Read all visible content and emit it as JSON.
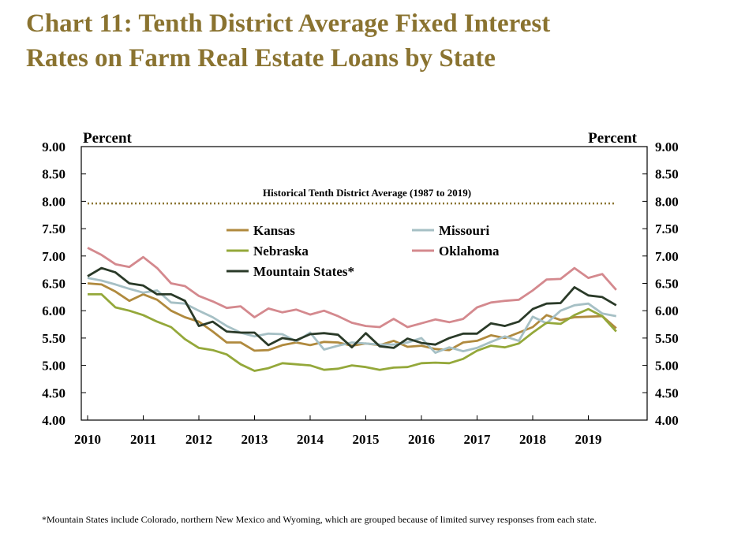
{
  "title": "Chart 11: Tenth District Average Fixed Interest\nRates on Farm Real Estate Loans by State",
  "footnote": "*Mountain States include Colorado, northern New Mexico and Wyoming, which are grouped because of limited survey responses from each state.",
  "chart_data": {
    "type": "line",
    "y_unit_left": "Percent",
    "y_unit_right": "Percent",
    "ylim": [
      4.0,
      9.0
    ],
    "xlim": [
      2010,
      2020
    ],
    "y_ticks": [
      "4.00",
      "4.50",
      "5.00",
      "5.50",
      "6.00",
      "6.50",
      "7.00",
      "7.50",
      "8.00",
      "8.50",
      "9.00"
    ],
    "x_ticks": [
      "2010",
      "2011",
      "2012",
      "2013",
      "2014",
      "2015",
      "2016",
      "2017",
      "2018",
      "2019"
    ],
    "grid": false,
    "legend_position": "upper-center",
    "reference_line": {
      "label": "Historical Tenth District Average (1987 to 2019)",
      "value": 7.96,
      "color": "#8a7330"
    },
    "x": [
      2010.0,
      2010.25,
      2010.5,
      2010.75,
      2011.0,
      2011.25,
      2011.5,
      2011.75,
      2012.0,
      2012.25,
      2012.5,
      2012.75,
      2013.0,
      2013.25,
      2013.5,
      2013.75,
      2014.0,
      2014.25,
      2014.5,
      2014.75,
      2015.0,
      2015.25,
      2015.5,
      2015.75,
      2016.0,
      2016.25,
      2016.5,
      2016.75,
      2017.0,
      2017.25,
      2017.5,
      2017.75,
      2018.0,
      2018.25,
      2018.5,
      2018.75,
      2019.0,
      2019.25,
      2019.5
    ],
    "series": [
      {
        "name": "Kansas",
        "color": "#b08a3e",
        "values": [
          6.5,
          6.48,
          6.35,
          6.18,
          6.3,
          6.2,
          6.0,
          5.88,
          5.8,
          5.62,
          5.42,
          5.42,
          5.27,
          5.28,
          5.37,
          5.42,
          5.37,
          5.43,
          5.42,
          5.36,
          5.4,
          5.37,
          5.45,
          5.34,
          5.36,
          5.3,
          5.28,
          5.42,
          5.45,
          5.55,
          5.5,
          5.6,
          5.7,
          5.92,
          5.83,
          5.88,
          5.89,
          5.9,
          5.68
        ]
      },
      {
        "name": "Missouri",
        "color": "#a6c0c5",
        "values": [
          6.6,
          6.55,
          6.48,
          6.4,
          6.33,
          6.37,
          6.15,
          6.13,
          6.0,
          5.88,
          5.72,
          5.6,
          5.53,
          5.58,
          5.57,
          5.44,
          5.6,
          5.29,
          5.36,
          5.42,
          5.4,
          5.38,
          5.38,
          5.42,
          5.5,
          5.23,
          5.33,
          5.26,
          5.32,
          5.43,
          5.53,
          5.45,
          5.89,
          5.77,
          6.0,
          6.1,
          6.13,
          5.95,
          5.9
        ]
      },
      {
        "name": "Nebraska",
        "color": "#94a83a",
        "values": [
          6.3,
          6.3,
          6.06,
          6.0,
          5.92,
          5.8,
          5.7,
          5.48,
          5.32,
          5.28,
          5.2,
          5.02,
          4.9,
          4.95,
          5.04,
          5.02,
          5.0,
          4.92,
          4.94,
          5.0,
          4.97,
          4.92,
          4.96,
          4.97,
          5.04,
          5.05,
          5.04,
          5.12,
          5.27,
          5.36,
          5.33,
          5.4,
          5.6,
          5.78,
          5.76,
          5.92,
          6.03,
          5.9,
          5.62
        ]
      },
      {
        "name": "Oklahoma",
        "color": "#d4898e",
        "values": [
          7.15,
          7.02,
          6.85,
          6.8,
          6.98,
          6.78,
          6.5,
          6.45,
          6.27,
          6.17,
          6.05,
          6.08,
          5.88,
          6.04,
          5.97,
          6.02,
          5.93,
          6.0,
          5.9,
          5.78,
          5.72,
          5.7,
          5.85,
          5.7,
          5.77,
          5.84,
          5.79,
          5.85,
          6.06,
          6.15,
          6.18,
          6.2,
          6.37,
          6.57,
          6.58,
          6.78,
          6.6,
          6.67,
          6.38
        ]
      },
      {
        "name": "Mountain States*",
        "color": "#2a3a28",
        "values": [
          6.63,
          6.78,
          6.7,
          6.5,
          6.46,
          6.3,
          6.3,
          6.18,
          5.72,
          5.8,
          5.62,
          5.6,
          5.6,
          5.37,
          5.5,
          5.46,
          5.57,
          5.59,
          5.56,
          5.33,
          5.59,
          5.35,
          5.32,
          5.49,
          5.41,
          5.38,
          5.5,
          5.58,
          5.58,
          5.77,
          5.72,
          5.8,
          6.03,
          6.13,
          6.14,
          6.43,
          6.28,
          6.25,
          6.1
        ]
      }
    ]
  }
}
